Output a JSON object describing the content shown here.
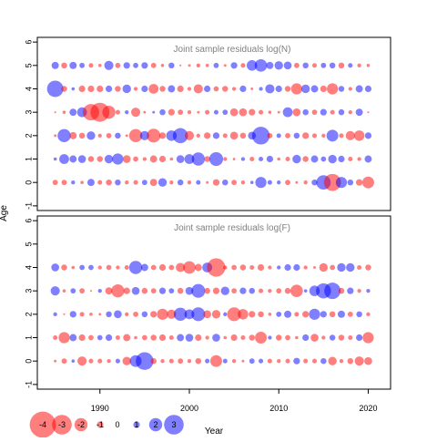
{
  "colors": {
    "positive": "#0000ff",
    "negative": "#ff0000",
    "title": "#808080",
    "axis": "#000000"
  },
  "labels": {
    "ylabel": "Age",
    "xlabel": "Year"
  },
  "x_ticks": [
    "1990",
    "2000",
    "2010",
    "2020"
  ],
  "y_ticks": [
    "-1",
    "0",
    "1",
    "2",
    "3",
    "4",
    "5",
    "6"
  ],
  "legend": {
    "values": [
      -4,
      -3,
      -2,
      -1,
      0,
      1,
      2,
      3
    ],
    "labels": [
      "-4",
      "-3",
      "-2",
      "-1",
      "0",
      "1",
      "2",
      "3"
    ]
  },
  "chart_data": [
    {
      "type": "scatter",
      "title": "Joint sample residuals log(N)",
      "xlabel": "Year",
      "ylabel": "Age",
      "xlim": [
        1983,
        2022.5
      ],
      "ylim": [
        -1.2,
        6.2
      ],
      "years": [
        1985,
        1986,
        1987,
        1988,
        1989,
        1990,
        1991,
        1992,
        1993,
        1994,
        1995,
        1996,
        1997,
        1998,
        1999,
        2000,
        2001,
        2002,
        2003,
        2004,
        2005,
        2006,
        2007,
        2008,
        2009,
        2010,
        2011,
        2012,
        2013,
        2014,
        2015,
        2016,
        2017,
        2018,
        2019,
        2020
      ],
      "ages": [
        0,
        1,
        2,
        3,
        4,
        5
      ],
      "residuals": [
        [
          -0.8,
          -0.8,
          0.6,
          -0.5,
          1.1,
          -0.7,
          -0.9,
          0.9,
          -0.6,
          -0.7,
          0.8,
          -1.1,
          1.3,
          -0.6,
          0.9,
          -0.6,
          0.7,
          -0.4,
          -1.0,
          0.9,
          -0.8,
          -0.6,
          0.5,
          1.7,
          0.7,
          0.6,
          -0.8,
          -0.4,
          -0.6,
          0.9,
          2.2,
          -2.6,
          1.7,
          0.9,
          -1.0,
          -1.8
        ],
        [
          0.5,
          1.5,
          1.1,
          1.2,
          -0.9,
          -0.9,
          1.3,
          1.7,
          -1.2,
          -0.8,
          -0.6,
          -1.1,
          -1.0,
          -0.5,
          1.2,
          1.5,
          2.0,
          -0.9,
          2.1,
          -0.6,
          -0.4,
          0.6,
          -0.7,
          0.7,
          1.0,
          -0.5,
          -0.7,
          1.3,
          -0.9,
          1.1,
          0.8,
          1.3,
          1.0,
          -0.7,
          -0.6,
          1.1
        ],
        [
          -0.4,
          2.0,
          -1.1,
          -0.9,
          1.3,
          -0.6,
          -0.8,
          0.9,
          -0.4,
          -2.0,
          1.4,
          -2.1,
          -1.0,
          1.6,
          2.3,
          -1.4,
          -0.6,
          -1.0,
          1.0,
          -0.7,
          -1.2,
          -0.9,
          1.2,
          2.7,
          -0.8,
          0.7,
          -0.8,
          0.9,
          -1.0,
          -0.7,
          -0.6,
          1.8,
          -0.7,
          -1.4,
          -1.6,
          1.0
        ],
        [
          -0.3,
          -0.5,
          1.1,
          1.5,
          -2.5,
          -2.9,
          -2.0,
          -0.7,
          0.6,
          -1.4,
          -0.4,
          0.4,
          0.9,
          -1.0,
          -0.8,
          -0.6,
          -0.4,
          -0.7,
          0.7,
          0.8,
          -1.2,
          -1.2,
          -1.0,
          -0.7,
          -0.5,
          -0.4,
          1.5,
          -1.2,
          0.9,
          -0.8,
          1.0,
          -0.7,
          0.9,
          -0.6,
          1.1,
          -0.3
        ],
        [
          2.5,
          -0.9,
          0.5,
          -1.0,
          -1.0,
          -1.0,
          1.0,
          -0.9,
          1.3,
          -0.6,
          1.0,
          -1.5,
          -0.9,
          1.1,
          -1.0,
          -0.6,
          -1.4,
          1.0,
          -0.8,
          -0.9,
          -0.6,
          1.0,
          -0.4,
          0.6,
          1.4,
          1.0,
          -0.9,
          -1.7,
          1.3,
          1.1,
          -1.0,
          -1.7,
          0.9,
          -0.6,
          1.1,
          1.0
        ],
        [
          1.1,
          -0.9,
          1.1,
          0.8,
          -0.7,
          -0.5,
          1.4,
          -0.8,
          1.0,
          0.8,
          1.0,
          -0.8,
          -0.5,
          0.9,
          -0.3,
          -0.4,
          -0.6,
          -0.5,
          0.8,
          -0.4,
          1.0,
          -0.7,
          1.6,
          1.9,
          1.1,
          1.3,
          1.2,
          -0.8,
          0.9,
          -0.7,
          0.8,
          0.9,
          -0.9,
          0.7,
          -0.6,
          -0.5
        ]
      ]
    },
    {
      "type": "scatter",
      "title": "Joint sample residuals log(F)",
      "xlabel": "Year",
      "ylabel": "Age",
      "xlim": [
        1983,
        2022.5
      ],
      "ylim": [
        -1.2,
        6.2
      ],
      "years": [
        1985,
        1986,
        1987,
        1988,
        1989,
        1990,
        1991,
        1992,
        1993,
        1994,
        1995,
        1996,
        1997,
        1998,
        1999,
        2000,
        2001,
        2002,
        2003,
        2004,
        2005,
        2006,
        2007,
        2008,
        2009,
        2010,
        2011,
        2012,
        2013,
        2014,
        2015,
        2016,
        2017,
        2018,
        2019,
        2020
      ],
      "ages": [
        0,
        1,
        2,
        3,
        4
      ],
      "residuals": [
        [
          -0.4,
          -0.8,
          0.5,
          -1.4,
          -0.7,
          -0.7,
          -0.6,
          0.7,
          -1.3,
          1.8,
          2.7,
          -0.9,
          -0.6,
          -0.7,
          -0.8,
          -0.6,
          -0.9,
          0.7,
          -1.8,
          0.7,
          -0.6,
          -0.4,
          0.8,
          0.7,
          -0.7,
          -0.6,
          -0.7,
          1.0,
          -0.7,
          -0.7,
          0.9,
          -1.3,
          -0.6,
          -0.9,
          -1.4,
          -1.2
        ],
        [
          -0.7,
          -1.7,
          1.1,
          -1.0,
          -0.8,
          0.8,
          1.0,
          -0.7,
          -1.1,
          -0.5,
          -0.8,
          -0.9,
          -1.0,
          -0.7,
          1.1,
          1.2,
          -1.0,
          -0.6,
          1.2,
          -0.5,
          -1.0,
          -0.7,
          -0.9,
          -1.8,
          0.6,
          -0.9,
          -0.8,
          -0.5,
          1.0,
          -1.2,
          -0.6,
          0.9,
          -0.9,
          -0.7,
          1.0,
          -1.7
        ],
        [
          0.6,
          -0.3,
          1.0,
          -0.7,
          -0.5,
          -0.4,
          0.9,
          1.2,
          -0.6,
          -0.8,
          0.9,
          -1.0,
          -1.7,
          -1.4,
          2.0,
          1.5,
          2.1,
          -1.2,
          -1.3,
          0.6,
          -2.1,
          -1.6,
          -1.0,
          -0.9,
          -0.5,
          0.8,
          1.1,
          -0.7,
          -1.0,
          1.7,
          1.0,
          -0.9,
          1.1,
          -0.8,
          0.9,
          -0.6
        ],
        [
          1.4,
          -0.5,
          0.8,
          -0.8,
          -0.3,
          0.6,
          -1.1,
          -2.0,
          -1.0,
          1.2,
          -0.9,
          -0.8,
          1.0,
          0.8,
          -0.9,
          1.2,
          2.1,
          -0.9,
          -1.0,
          1.3,
          -0.8,
          1.0,
          0.9,
          -0.7,
          -0.6,
          -0.8,
          -0.9,
          -1.9,
          0.5,
          1.6,
          2.3,
          2.5,
          -0.9,
          1.0,
          -0.6,
          0.6
        ],
        [
          1.2,
          -0.9,
          -0.5,
          0.8,
          0.8,
          -0.6,
          -0.8,
          -0.6,
          -0.7,
          2.0,
          1.1,
          -0.8,
          -1.0,
          -0.8,
          -1.4,
          -1.9,
          -1.1,
          1.5,
          -2.8,
          -0.6,
          -0.8,
          -0.9,
          -0.7,
          -1.0,
          -0.6,
          0.6,
          1.0,
          1.0,
          -0.6,
          -0.4,
          -1.3,
          -0.8,
          1.3,
          1.3,
          -0.7,
          -0.9
        ]
      ]
    }
  ]
}
